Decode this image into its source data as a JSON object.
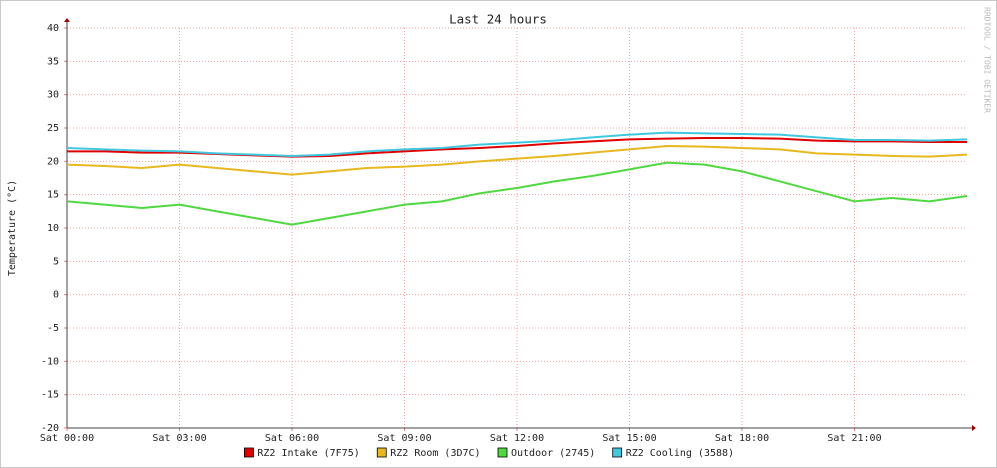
{
  "chart_data": {
    "type": "line",
    "title": "Last 24 hours",
    "y_label": "Temperature (°C)",
    "side_note": "RRDTOOL / TOBI OETIKER",
    "x": [
      0,
      1,
      2,
      3,
      4,
      5,
      6,
      7,
      8,
      9,
      10,
      11,
      12,
      13,
      14,
      15,
      16,
      17,
      18,
      19,
      20,
      21,
      22,
      23,
      24
    ],
    "xlim": [
      0,
      24
    ],
    "xticks": [
      {
        "value": 0,
        "label": "Sat 00:00"
      },
      {
        "value": 3,
        "label": "Sat 03:00"
      },
      {
        "value": 6,
        "label": "Sat 06:00"
      },
      {
        "value": 9,
        "label": "Sat 09:00"
      },
      {
        "value": 12,
        "label": "Sat 12:00"
      },
      {
        "value": 15,
        "label": "Sat 15:00"
      },
      {
        "value": 18,
        "label": "Sat 18:00"
      },
      {
        "value": 21,
        "label": "Sat 21:00"
      }
    ],
    "ylim": [
      -20,
      40
    ],
    "yticks": [
      -20,
      -15,
      -10,
      -5,
      0,
      5,
      10,
      15,
      20,
      25,
      30,
      35,
      40
    ],
    "grid": true,
    "legend": "bottom",
    "series": [
      {
        "name": "RZ2 Intake (7F75)",
        "color": "#e00000",
        "values": [
          21.5,
          21.5,
          21.3,
          21.3,
          21.1,
          20.9,
          20.7,
          20.8,
          21.2,
          21.5,
          21.8,
          22.0,
          22.3,
          22.7,
          23.0,
          23.3,
          23.4,
          23.5,
          23.5,
          23.4,
          23.1,
          23.0,
          23.0,
          22.9,
          22.9
        ]
      },
      {
        "name": "RZ2 Room (3D7C)",
        "color": "#e8b820",
        "values": [
          19.5,
          19.3,
          19.0,
          19.5,
          19.0,
          18.5,
          18.0,
          18.5,
          19.0,
          19.2,
          19.5,
          20.0,
          20.4,
          20.8,
          21.3,
          21.8,
          22.3,
          22.2,
          22.0,
          21.8,
          21.2,
          21.0,
          20.8,
          20.7,
          21.0
        ]
      },
      {
        "name": "Outdoor (2745)",
        "color": "#50d840",
        "values": [
          14.0,
          13.5,
          13.0,
          13.5,
          12.5,
          11.5,
          10.5,
          11.5,
          12.5,
          13.5,
          14.0,
          15.2,
          16.0,
          17.0,
          17.8,
          18.8,
          19.8,
          19.5,
          18.5,
          17.0,
          15.5,
          14.0,
          14.5,
          14.0,
          14.8
        ]
      },
      {
        "name": "RZ2 Cooling (3588)",
        "color": "#40c8e0",
        "values": [
          22.0,
          21.8,
          21.6,
          21.5,
          21.2,
          21.0,
          20.8,
          21.0,
          21.5,
          21.8,
          22.0,
          22.5,
          22.8,
          23.1,
          23.6,
          24.0,
          24.3,
          24.2,
          24.1,
          24.0,
          23.6,
          23.2,
          23.2,
          23.1,
          23.3
        ]
      }
    ]
  }
}
